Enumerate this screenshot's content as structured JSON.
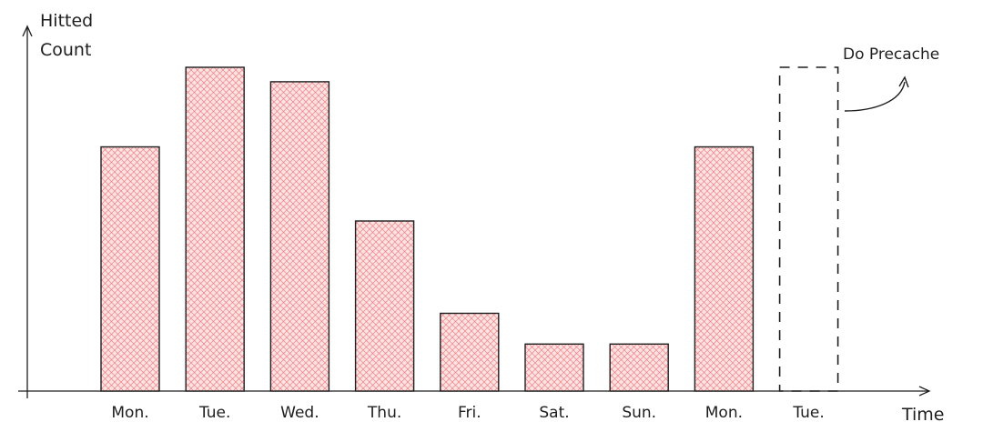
{
  "chart_data": {
    "type": "bar",
    "title": "",
    "xlabel": "Time",
    "ylabel_lines": [
      "Hitted",
      "Count"
    ],
    "ylabel": "Hitted Count",
    "categories": [
      "Mon.",
      "Tue.",
      "Wed.",
      "Thu.",
      "Fri.",
      "Sat.",
      "Sun.",
      "Mon.",
      "Tue."
    ],
    "values": [
      270,
      358,
      342,
      188,
      86,
      52,
      52,
      270,
      null
    ],
    "predicted": {
      "category_index": 8,
      "value": 358,
      "style": "dashed"
    },
    "annotation": {
      "text": "Do Precache",
      "target_category_index": 8
    },
    "ylim": [
      0,
      360
    ],
    "grid": false,
    "legend": "none",
    "colors": {
      "bar_fill": "#ffe3e3",
      "bar_hatch": "#e8777a",
      "bar_stroke": "#1e1e1e",
      "axis": "#1e1e1e",
      "text": "#1e1e1e"
    }
  }
}
